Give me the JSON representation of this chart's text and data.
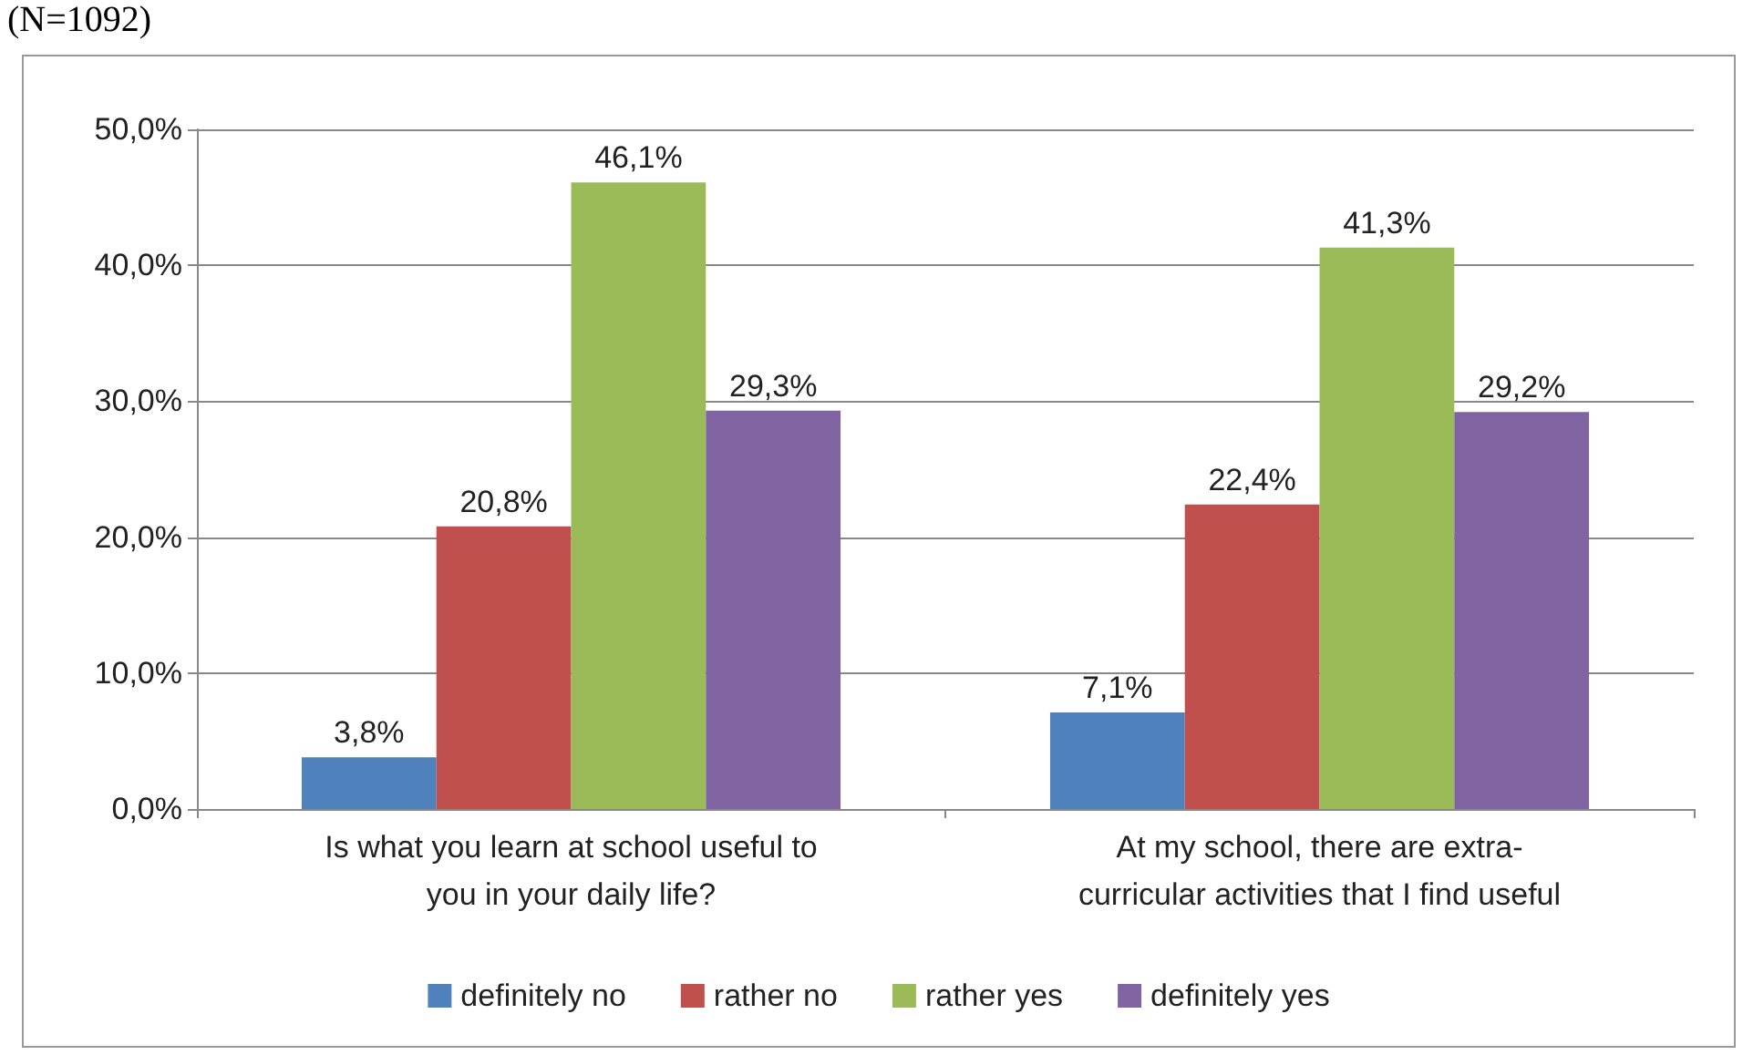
{
  "chart_data": {
    "type": "bar",
    "title": "(N=1092)",
    "categories": [
      "Is what you learn at school useful to\nyou in your daily life?",
      "At my school, there are extra-\ncurricular activities that I find useful"
    ],
    "series": [
      {
        "name": "definitely no",
        "color": "#4f81bd",
        "values": [
          3.8,
          7.1
        ],
        "value_labels": [
          "3,8%",
          "7,1%"
        ]
      },
      {
        "name": "rather no",
        "color": "#c0504d",
        "values": [
          20.8,
          22.4
        ],
        "value_labels": [
          "20,8%",
          "22,4%"
        ]
      },
      {
        "name": "rather yes",
        "color": "#9bbb59",
        "values": [
          46.1,
          41.3
        ],
        "value_labels": [
          "46,1%",
          "41,3%"
        ]
      },
      {
        "name": "definitely yes",
        "color": "#8064a2",
        "values": [
          29.3,
          29.2
        ],
        "value_labels": [
          "29,3%",
          "29,2%"
        ]
      }
    ],
    "ylim": [
      0,
      50
    ],
    "yticks": [
      {
        "value": 0,
        "label": "0,0%"
      },
      {
        "value": 10,
        "label": "10,0%"
      },
      {
        "value": 20,
        "label": "20,0%"
      },
      {
        "value": 30,
        "label": "30,0%"
      },
      {
        "value": 40,
        "label": "40,0%"
      },
      {
        "value": 50,
        "label": "50,0%"
      }
    ],
    "grid": "y",
    "legend": "bottom"
  }
}
